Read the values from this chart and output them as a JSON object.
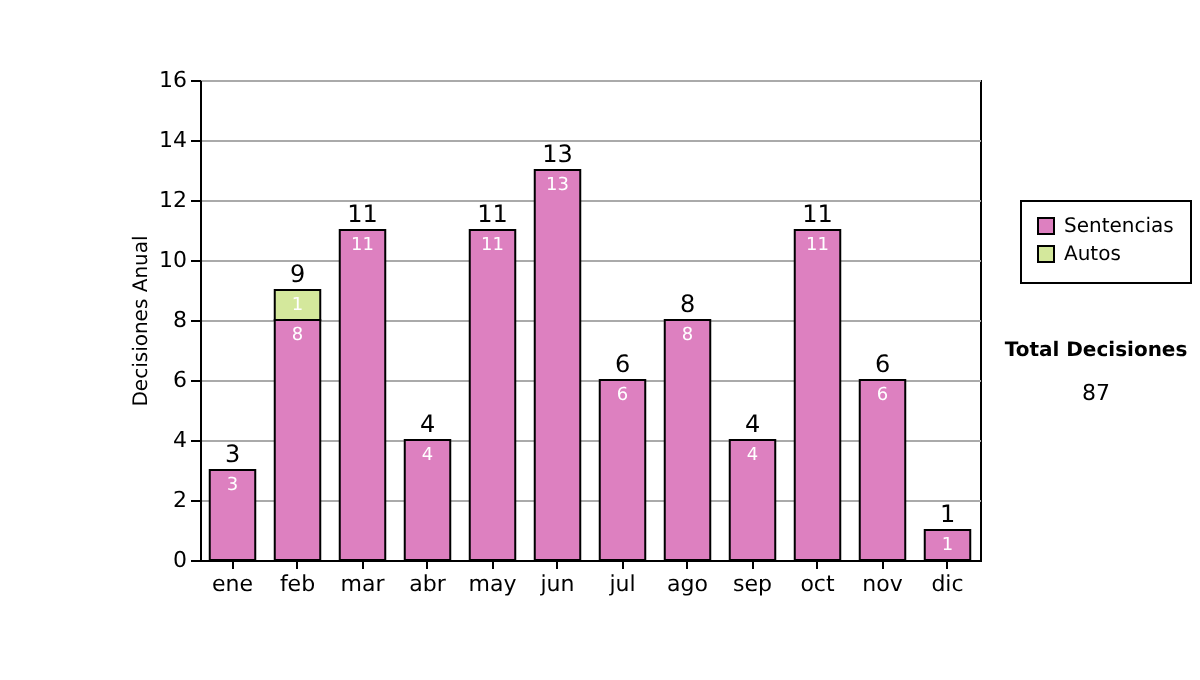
{
  "chart_data": {
    "type": "bar",
    "stacked": true,
    "ylabel": "Decisiones Anual",
    "categories": [
      "ene",
      "feb",
      "mar",
      "abr",
      "may",
      "jun",
      "jul",
      "ago",
      "sep",
      "oct",
      "nov",
      "dic"
    ],
    "series": [
      {
        "name": "Sentencias",
        "color": "#dd80c0",
        "values": [
          3,
          8,
          11,
          4,
          11,
          13,
          6,
          8,
          4,
          11,
          6,
          1
        ]
      },
      {
        "name": "Autos",
        "color": "#d4e89c",
        "values": [
          null,
          1,
          null,
          null,
          null,
          null,
          null,
          null,
          null,
          null,
          null,
          null
        ]
      }
    ],
    "ylim": [
      0,
      16
    ],
    "yticks": [
      0,
      2,
      4,
      6,
      8,
      10,
      12,
      14,
      16
    ],
    "grid": "y",
    "legend": "right",
    "data_labels": true,
    "totals": [
      "3",
      "9",
      "11",
      "4",
      "11",
      "13",
      "6",
      "8",
      "4",
      "11",
      "6",
      "1"
    ],
    "annotations": [
      "Total Decisiones",
      "87"
    ]
  }
}
